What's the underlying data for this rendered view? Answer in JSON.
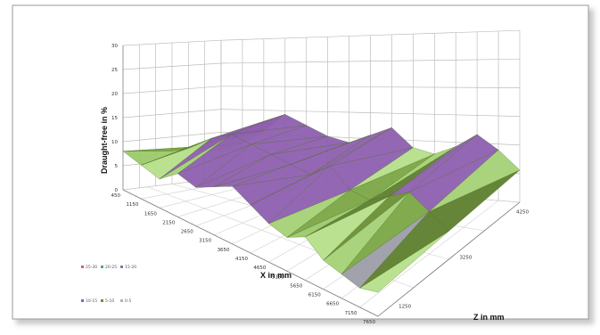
{
  "chart_data": {
    "type": "surface",
    "zlabel": "Draught-free in %",
    "xlabel": "X in mm",
    "ylabel": "Z in mm",
    "zlim": [
      0,
      30
    ],
    "z_ticks": [
      "0",
      "5",
      "10",
      "15",
      "20",
      "25",
      "30"
    ],
    "x_ticks": [
      "450",
      "1150",
      "1650",
      "2150",
      "2650",
      "3150",
      "3650",
      "4150",
      "4650",
      "5150",
      "5650",
      "6150",
      "6650",
      "7150",
      "7650"
    ],
    "y_ticks": [
      "1250",
      "3250",
      "4250"
    ],
    "legend": {
      "placement": "bottom-left",
      "items": [
        {
          "label": "25-30",
          "color": "#e06060"
        },
        {
          "label": "20-25",
          "color": "#4aa3a3"
        },
        {
          "label": "15-20",
          "color": "#7a7aa8"
        },
        {
          "label": "10-15",
          "color": "#8e5fb0"
        },
        {
          "label": "5-10",
          "color": "#6b8f3a"
        },
        {
          "label": "0-5",
          "color": "#b0b0b8"
        }
      ]
    },
    "grid": true,
    "surface": {
      "rows": [
        [
          8,
          7,
          6,
          9,
          8,
          10,
          12,
          10,
          8,
          7,
          9,
          6,
          5,
          4,
          5
        ],
        [
          7,
          9,
          12,
          14,
          13,
          12,
          11,
          10,
          13,
          9,
          8,
          10,
          12,
          9,
          6
        ],
        [
          6,
          8,
          11,
          15,
          13,
          11,
          10,
          12,
          14,
          10,
          9,
          11,
          14,
          11,
          7
        ]
      ]
    }
  }
}
